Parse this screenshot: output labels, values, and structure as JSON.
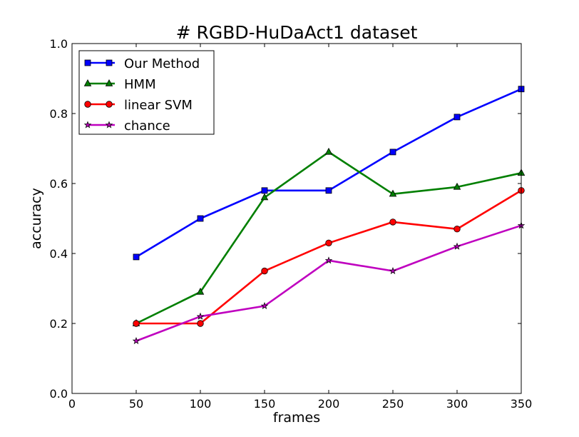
{
  "chart_data": {
    "type": "line",
    "title": "# RGBD-HuDaAct1 dataset",
    "xlabel": "frames",
    "ylabel": "accuracy",
    "xlim": [
      0,
      350
    ],
    "ylim": [
      0.0,
      1.0
    ],
    "x_ticks": [
      "0",
      "50",
      "100",
      "150",
      "200",
      "250",
      "300",
      "350"
    ],
    "y_ticks": [
      "0.0",
      "0.2",
      "0.4",
      "0.6",
      "0.8",
      "1.0"
    ],
    "x": [
      50,
      100,
      150,
      200,
      250,
      300,
      350
    ],
    "grid": false,
    "legend_position": "upper-left",
    "series": [
      {
        "name": "Our Method",
        "color": "#0000ff",
        "marker": "square",
        "values": [
          0.39,
          0.5,
          0.58,
          0.58,
          0.69,
          0.79,
          0.87
        ]
      },
      {
        "name": "HMM",
        "color": "#007f00",
        "marker": "triangle",
        "values": [
          0.2,
          0.29,
          0.56,
          0.69,
          0.57,
          0.59,
          0.63
        ]
      },
      {
        "name": "linear SVM",
        "color": "#ff0000",
        "marker": "circle",
        "values": [
          0.2,
          0.2,
          0.35,
          0.43,
          0.49,
          0.47,
          0.58
        ]
      },
      {
        "name": "chance",
        "color": "#bf00bf",
        "marker": "star",
        "values": [
          0.15,
          0.22,
          0.25,
          0.38,
          0.35,
          0.42,
          0.48
        ]
      }
    ]
  }
}
